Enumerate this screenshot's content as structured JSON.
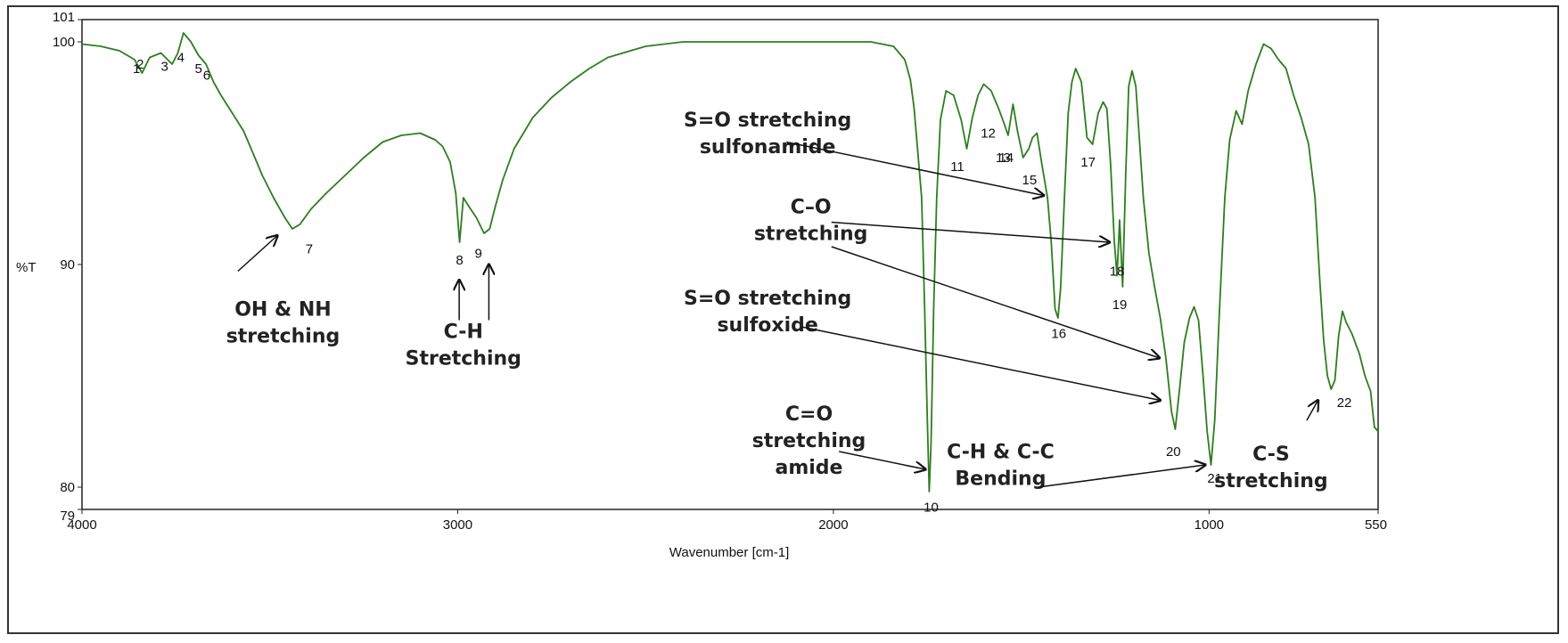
{
  "chart_data": {
    "type": "line",
    "title": "",
    "xlabel": "Wavenumber [cm-1]",
    "ylabel": "%T",
    "xlim": [
      4000,
      550
    ],
    "ylim": [
      79,
      101
    ],
    "x_reversed": true,
    "grid": false,
    "x_ticks": [
      {
        "label": "4000",
        "value": 4000
      },
      {
        "label": "3000",
        "value": 3000
      },
      {
        "label": "2000",
        "value": 2000
      },
      {
        "label": "1000",
        "value": 1000
      },
      {
        "label": "550",
        "value": 550
      }
    ],
    "y_ticks": [
      {
        "label": "101",
        "value": 101
      },
      {
        "label": "100",
        "value": 100
      },
      {
        "label": "90",
        "value": 90
      },
      {
        "label": "80",
        "value": 80
      },
      {
        "label": "79",
        "value": 79
      }
    ],
    "series": [
      {
        "color": "#2e7d1f",
        "points": [
          [
            4000,
            99.9
          ],
          [
            3950,
            99.8
          ],
          [
            3900,
            99.6
          ],
          [
            3860,
            99.2
          ],
          [
            3840,
            98.6
          ],
          [
            3820,
            99.3
          ],
          [
            3790,
            99.5
          ],
          [
            3760,
            99.0
          ],
          [
            3745,
            99.5
          ],
          [
            3730,
            100.4
          ],
          [
            3710,
            100.0
          ],
          [
            3690,
            99.4
          ],
          [
            3670,
            99.0
          ],
          [
            3650,
            98.2
          ],
          [
            3630,
            97.6
          ],
          [
            3600,
            96.8
          ],
          [
            3570,
            96.0
          ],
          [
            3550,
            95.2
          ],
          [
            3520,
            94.0
          ],
          [
            3490,
            93.0
          ],
          [
            3460,
            92.1
          ],
          [
            3440,
            91.6
          ],
          [
            3420,
            91.8
          ],
          [
            3390,
            92.5
          ],
          [
            3350,
            93.2
          ],
          [
            3300,
            94.0
          ],
          [
            3250,
            94.8
          ],
          [
            3200,
            95.5
          ],
          [
            3150,
            95.8
          ],
          [
            3100,
            95.9
          ],
          [
            3060,
            95.6
          ],
          [
            3040,
            95.3
          ],
          [
            3020,
            94.6
          ],
          [
            3005,
            93.2
          ],
          [
            2995,
            91.0
          ],
          [
            2985,
            93.0
          ],
          [
            2970,
            92.6
          ],
          [
            2950,
            92.1
          ],
          [
            2930,
            91.4
          ],
          [
            2915,
            91.6
          ],
          [
            2900,
            92.6
          ],
          [
            2880,
            93.8
          ],
          [
            2850,
            95.2
          ],
          [
            2800,
            96.6
          ],
          [
            2750,
            97.5
          ],
          [
            2700,
            98.2
          ],
          [
            2650,
            98.8
          ],
          [
            2600,
            99.3
          ],
          [
            2500,
            99.8
          ],
          [
            2400,
            100.0
          ],
          [
            2300,
            100.0
          ],
          [
            2200,
            100.0
          ],
          [
            2100,
            100.0
          ],
          [
            2000,
            100.0
          ],
          [
            1900,
            100.0
          ],
          [
            1840,
            99.8
          ],
          [
            1810,
            99.2
          ],
          [
            1795,
            98.3
          ],
          [
            1785,
            97.0
          ],
          [
            1775,
            95.0
          ],
          [
            1765,
            93.0
          ],
          [
            1757,
            88.0
          ],
          [
            1750,
            83.0
          ],
          [
            1745,
            79.8
          ],
          [
            1740,
            82.0
          ],
          [
            1733,
            88.0
          ],
          [
            1725,
            93.0
          ],
          [
            1715,
            96.5
          ],
          [
            1700,
            97.8
          ],
          [
            1680,
            97.6
          ],
          [
            1660,
            96.5
          ],
          [
            1645,
            95.2
          ],
          [
            1630,
            96.6
          ],
          [
            1615,
            97.6
          ],
          [
            1600,
            98.1
          ],
          [
            1580,
            97.8
          ],
          [
            1560,
            97.0
          ],
          [
            1545,
            96.3
          ],
          [
            1535,
            95.8
          ],
          [
            1522,
            97.2
          ],
          [
            1510,
            96.0
          ],
          [
            1495,
            94.8
          ],
          [
            1480,
            95.2
          ],
          [
            1470,
            95.7
          ],
          [
            1458,
            95.9
          ],
          [
            1445,
            94.5
          ],
          [
            1430,
            93.0
          ],
          [
            1420,
            91.0
          ],
          [
            1410,
            88.0
          ],
          [
            1402,
            87.6
          ],
          [
            1395,
            89.0
          ],
          [
            1385,
            93.0
          ],
          [
            1375,
            96.8
          ],
          [
            1365,
            98.2
          ],
          [
            1355,
            98.8
          ],
          [
            1340,
            98.2
          ],
          [
            1325,
            95.7
          ],
          [
            1310,
            95.4
          ],
          [
            1295,
            96.8
          ],
          [
            1282,
            97.3
          ],
          [
            1272,
            97.0
          ],
          [
            1262,
            94.5
          ],
          [
            1252,
            91.0
          ],
          [
            1245,
            89.5
          ],
          [
            1238,
            92.0
          ],
          [
            1230,
            89.0
          ],
          [
            1222,
            94.0
          ],
          [
            1214,
            98.0
          ],
          [
            1205,
            98.7
          ],
          [
            1195,
            98.0
          ],
          [
            1185,
            95.5
          ],
          [
            1175,
            93.0
          ],
          [
            1160,
            90.5
          ],
          [
            1145,
            89.0
          ],
          [
            1130,
            87.6
          ],
          [
            1115,
            85.8
          ],
          [
            1100,
            83.4
          ],
          [
            1090,
            82.6
          ],
          [
            1078,
            84.5
          ],
          [
            1066,
            86.5
          ],
          [
            1052,
            87.6
          ],
          [
            1040,
            88.1
          ],
          [
            1028,
            87.5
          ],
          [
            1016,
            85.0
          ],
          [
            1005,
            82.5
          ],
          [
            995,
            81.0
          ],
          [
            985,
            83.0
          ],
          [
            972,
            88.0
          ],
          [
            958,
            93.0
          ],
          [
            945,
            95.6
          ],
          [
            928,
            96.9
          ],
          [
            912,
            96.3
          ],
          [
            896,
            97.8
          ],
          [
            875,
            99.0
          ],
          [
            855,
            99.9
          ],
          [
            835,
            99.7
          ],
          [
            815,
            99.2
          ],
          [
            795,
            98.8
          ],
          [
            775,
            97.6
          ],
          [
            755,
            96.6
          ],
          [
            735,
            95.4
          ],
          [
            718,
            93.0
          ],
          [
            705,
            89.2
          ],
          [
            695,
            86.6
          ],
          [
            685,
            85.0
          ],
          [
            675,
            84.4
          ],
          [
            665,
            84.8
          ],
          [
            655,
            86.8
          ],
          [
            645,
            87.9
          ],
          [
            635,
            87.4
          ],
          [
            620,
            86.9
          ],
          [
            600,
            86.0
          ],
          [
            585,
            85.0
          ],
          [
            570,
            84.3
          ],
          [
            560,
            82.7
          ],
          [
            550,
            82.5
          ]
        ]
      }
    ],
    "peak_labels": [
      {
        "label": "1",
        "x": 3855,
        "y": 98.6
      },
      {
        "label": "2",
        "x": 3845,
        "y": 98.8
      },
      {
        "label": "3",
        "x": 3780,
        "y": 98.7
      },
      {
        "label": "4",
        "x": 3737,
        "y": 99.1
      },
      {
        "label": "5",
        "x": 3690,
        "y": 98.6
      },
      {
        "label": "6",
        "x": 3668,
        "y": 98.3
      },
      {
        "label": "7",
        "x": 3395,
        "y": 90.5
      },
      {
        "label": "8",
        "x": 2995,
        "y": 90.0
      },
      {
        "label": "9",
        "x": 2945,
        "y": 90.3
      },
      {
        "label": "10",
        "x": 1740,
        "y": 78.9
      },
      {
        "label": "11",
        "x": 1670,
        "y": 94.2
      },
      {
        "label": "12",
        "x": 1588,
        "y": 95.7
      },
      {
        "label": "13",
        "x": 1548,
        "y": 94.6
      },
      {
        "label": "14",
        "x": 1540,
        "y": 94.6
      },
      {
        "label": "15",
        "x": 1478,
        "y": 93.6
      },
      {
        "label": "16",
        "x": 1400,
        "y": 86.7
      },
      {
        "label": "17",
        "x": 1322,
        "y": 94.4
      },
      {
        "label": "18",
        "x": 1245,
        "y": 89.5
      },
      {
        "label": "19",
        "x": 1238,
        "y": 88.0
      },
      {
        "label": "20",
        "x": 1095,
        "y": 81.4
      },
      {
        "label": "21",
        "x": 985,
        "y": 80.2
      },
      {
        "label": "22",
        "x": 640,
        "y": 83.6
      }
    ],
    "annotations": [
      {
        "lines": [
          "OH & NH",
          "stretching"
        ],
        "x": 3465,
        "y": 87.7,
        "arrows": [
          {
            "from": [
              3585,
              89.7
            ],
            "to": [
              3480,
              91.3
            ]
          }
        ]
      },
      {
        "lines": [
          "C-H",
          "Stretching"
        ],
        "x": 2985,
        "y": 86.7,
        "arrows": [
          {
            "from": [
              2996,
              87.5
            ],
            "to": [
              2996,
              89.3
            ]
          },
          {
            "from": [
              2917,
              87.5
            ],
            "to": [
              2917,
              90.0
            ]
          }
        ]
      },
      {
        "lines": [
          "S=O stretching",
          "sulfonamide"
        ],
        "x": 2175,
        "y": 96.2,
        "arrows": [
          {
            "from": [
              2125,
              95.5
            ],
            "to": [
              1440,
              93.1
            ]
          }
        ]
      },
      {
        "lines": [
          "C–O",
          "stretching"
        ],
        "x": 2060,
        "y": 92.3,
        "arrows": [
          {
            "from": [
              2005,
              91.9
            ],
            "to": [
              1265,
              91.0
            ]
          },
          {
            "from": [
              2005,
              90.8
            ],
            "to": [
              1132,
              85.8
            ]
          }
        ]
      },
      {
        "lines": [
          "S=O stretching",
          "sulfoxide"
        ],
        "x": 2175,
        "y": 88.2,
        "arrows": [
          {
            "from": [
              2085,
              87.2
            ],
            "to": [
              1130,
              83.9
            ]
          }
        ]
      },
      {
        "lines": [
          "C=O",
          "stretching",
          "amide"
        ],
        "x": 2065,
        "y": 83.0,
        "arrows": [
          {
            "from": [
              1985,
              81.6
            ],
            "to": [
              1755,
              80.8
            ]
          }
        ]
      },
      {
        "lines": [
          "C-H & C-C",
          "Bending"
        ],
        "x": 1555,
        "y": 81.3,
        "arrows": [
          {
            "from": [
              1455,
              80.0
            ],
            "to": [
              1010,
              81.0
            ]
          }
        ]
      },
      {
        "lines": [
          "C-S",
          "stretching"
        ],
        "x": 835,
        "y": 81.2,
        "arrows": [
          {
            "from": [
              740,
              83.0
            ],
            "to": [
              710,
              83.9
            ]
          }
        ]
      }
    ]
  }
}
